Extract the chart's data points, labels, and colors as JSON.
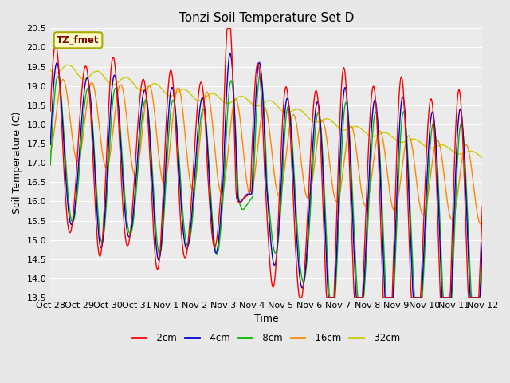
{
  "title": "Tonzi Soil Temperature Set D",
  "xlabel": "Time",
  "ylabel": "Soil Temperature (C)",
  "ylim": [
    13.5,
    20.5
  ],
  "x_tick_labels": [
    "Oct 28",
    "Oct 29",
    "Oct 30",
    "Oct 31",
    "Nov 1",
    "Nov 2",
    "Nov 3",
    "Nov 4",
    "Nov 5",
    "Nov 6",
    "Nov 7",
    "Nov 8",
    "Nov 9",
    "Nov 10",
    "Nov 11",
    "Nov 12"
  ],
  "legend_label": "TZ_fmet",
  "series_labels": [
    "-2cm",
    "-4cm",
    "-8cm",
    "-16cm",
    "-32cm"
  ],
  "series_colors": [
    "#ff0000",
    "#0000cc",
    "#00bb00",
    "#ff8800",
    "#cccc00"
  ],
  "background_color": "#e8e8e8",
  "plot_bg_color": "#ebebeb",
  "title_fontsize": 11,
  "label_fontsize": 9,
  "tick_fontsize": 8
}
